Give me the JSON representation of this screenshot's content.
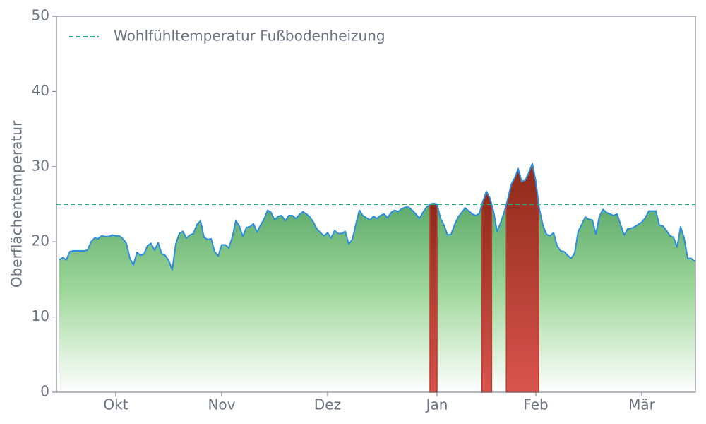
{
  "chart_data": {
    "type": "area",
    "y_label": "Oberflächentemperatur",
    "x": [
      0,
      1,
      2,
      3,
      4,
      5,
      6,
      7,
      8,
      9,
      10,
      11,
      12,
      13,
      14,
      15,
      16,
      17,
      18,
      19,
      20,
      21,
      22,
      23,
      24,
      25,
      26,
      27,
      28,
      29,
      30,
      31,
      32,
      33,
      34,
      35,
      36,
      37,
      38,
      39,
      40,
      41,
      42,
      43,
      44,
      45,
      46,
      47,
      48,
      49,
      50,
      51,
      52,
      53,
      54,
      55,
      56,
      57,
      58,
      59,
      60,
      61,
      62,
      63,
      64,
      65,
      66,
      67,
      68,
      69,
      70,
      71,
      72,
      73,
      74,
      75,
      76,
      77,
      78,
      79,
      80,
      81,
      82,
      83,
      84,
      85,
      86,
      87,
      88,
      89,
      90,
      91,
      92,
      93,
      94,
      95,
      96,
      97,
      98,
      99,
      100,
      101,
      102,
      103,
      104,
      105,
      106,
      107,
      108,
      109,
      110,
      111,
      112,
      113,
      114,
      115,
      116,
      117,
      118,
      119,
      120,
      121,
      122,
      123,
      124,
      125,
      126,
      127,
      128,
      129,
      130,
      131,
      132,
      133,
      134,
      135,
      136,
      137,
      138,
      139,
      140,
      141,
      142,
      143,
      144,
      145,
      146,
      147,
      148,
      149,
      150,
      151,
      152,
      153,
      154,
      155,
      156,
      157,
      158,
      159,
      160,
      161,
      162,
      163,
      164,
      165,
      166,
      167,
      168,
      169,
      170,
      171,
      172,
      173,
      174,
      175,
      176,
      177,
      178,
      179,
      180
    ],
    "series": [
      {
        "color": "#2a8de0",
        "values": [
          17.6,
          17.9,
          17.6,
          18.7,
          18.8,
          18.8,
          18.8,
          18.8,
          18.9,
          20.0,
          20.5,
          20.4,
          20.8,
          20.7,
          20.7,
          20.9,
          20.8,
          20.8,
          20.4,
          19.8,
          17.8,
          16.9,
          18.6,
          18.2,
          18.4,
          19.5,
          19.8,
          18.9,
          19.9,
          18.4,
          18.2,
          17.5,
          16.3,
          19.7,
          21.1,
          21.4,
          20.5,
          20.9,
          21.1,
          22.3,
          22.8,
          20.6,
          20.3,
          20.4,
          18.7,
          18.1,
          19.6,
          19.6,
          19.2,
          20.6,
          22.8,
          22.1,
          20.7,
          21.9,
          22.0,
          22.4,
          21.3,
          22.2,
          23.0,
          24.2,
          23.9,
          22.9,
          23.4,
          23.5,
          22.8,
          23.5,
          23.5,
          23.1,
          23.6,
          24.0,
          23.7,
          23.3,
          22.6,
          21.7,
          21.2,
          20.8,
          21.2,
          20.5,
          21.5,
          21.1,
          21.1,
          21.4,
          19.7,
          20.3,
          22.3,
          24.2,
          23.5,
          23.2,
          22.9,
          23.4,
          23.1,
          23.5,
          23.7,
          23.2,
          23.9,
          24.2,
          24.0,
          24.4,
          24.6,
          24.6,
          24.2,
          23.7,
          23.1,
          23.9,
          24.6,
          25.0,
          25.1,
          25.0,
          23.1,
          22.2,
          20.9,
          21.0,
          22.3,
          23.3,
          23.9,
          24.5,
          24.1,
          23.7,
          23.5,
          23.8,
          25.4,
          26.7,
          25.8,
          24.1,
          21.4,
          22.5,
          23.9,
          25.6,
          27.6,
          28.5,
          29.7,
          28.0,
          28.2,
          29.2,
          30.4,
          28.0,
          24.3,
          22.2,
          21.0,
          20.8,
          21.2,
          19.5,
          18.8,
          18.7,
          18.2,
          17.8,
          18.5,
          21.4,
          22.3,
          23.3,
          23.0,
          22.9,
          21.0,
          23.4,
          24.3,
          23.9,
          23.7,
          23.5,
          23.7,
          22.3,
          20.9,
          21.7,
          21.8,
          22.0,
          22.3,
          22.6,
          23.2,
          24.1,
          24.1,
          24.1,
          22.2,
          22.1,
          21.5,
          20.8,
          20.6,
          19.3,
          22.0,
          20.5,
          17.8,
          17.8,
          17.4
        ]
      }
    ],
    "threshold": {
      "label": "Wohlfühltemperatur Fußbodenheizung",
      "value": 25,
      "color": "#1db37a"
    },
    "xlim": [
      -0.8,
      180.2
    ],
    "xticks": [
      {
        "value": 16,
        "label": "Okt"
      },
      {
        "value": 46,
        "label": "Nov"
      },
      {
        "value": 76,
        "label": "Dez"
      },
      {
        "value": 107,
        "label": "Jan"
      },
      {
        "value": 135,
        "label": "Feb"
      },
      {
        "value": 165,
        "label": "Mär"
      }
    ],
    "ylim": [
      0,
      50
    ],
    "yticks": [
      0,
      10,
      20,
      30,
      40,
      50
    ],
    "legend_position": "upper left"
  }
}
